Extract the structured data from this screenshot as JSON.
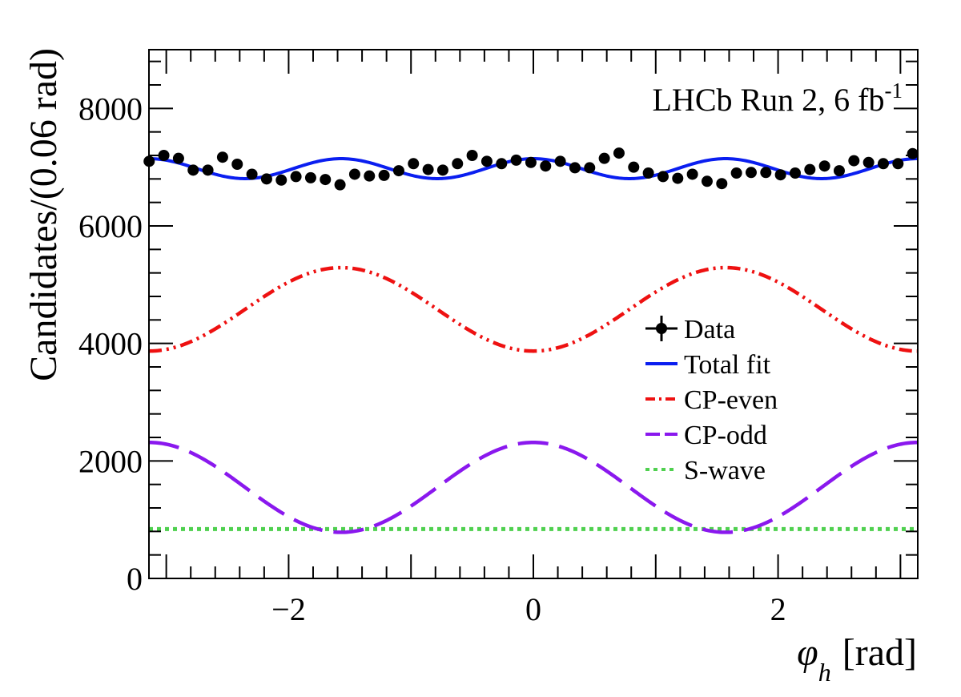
{
  "chart_data": {
    "type": "line",
    "annotation": {
      "text": "LHCb Run 2, 6 fb",
      "superscript": "-1"
    },
    "xlabel": {
      "symbol": "φ",
      "subscript": "h",
      "unit": "[rad]"
    },
    "ylabel": "Candidates/(0.06 rad)",
    "xlim": [
      -3.14159,
      3.14159
    ],
    "ylim": [
      0,
      9000
    ],
    "x_ticks": [
      {
        "value": -2,
        "label": "−2"
      },
      {
        "value": 0,
        "label": "0"
      },
      {
        "value": 2,
        "label": "2"
      }
    ],
    "y_ticks": [
      {
        "value": 0,
        "label": "0"
      },
      {
        "value": 2000,
        "label": "2000"
      },
      {
        "value": 4000,
        "label": "4000"
      },
      {
        "value": 6000,
        "label": "6000"
      },
      {
        "value": 8000,
        "label": "8000"
      }
    ],
    "legend": {
      "position": "center-right",
      "entries": [
        {
          "key": "data",
          "label": "Data",
          "style": "marker",
          "color": "#000000"
        },
        {
          "key": "total",
          "label": "Total fit",
          "style": "solid",
          "color": "#0a1ef0"
        },
        {
          "key": "even",
          "label": "CP-even",
          "style": "dashdot",
          "color": "#ee1111"
        },
        {
          "key": "odd",
          "label": "CP-odd",
          "style": "dashed",
          "color": "#8a18ee"
        },
        {
          "key": "swave",
          "label": "S-wave",
          "style": "dotted",
          "color": "#4fd04f"
        }
      ]
    },
    "curves": {
      "even": {
        "name": "CP-even",
        "mean": 4580,
        "amp": -710,
        "harmonic": 2
      },
      "odd": {
        "name": "CP-odd",
        "mean": 1550,
        "amp": 765,
        "harmonic": 2
      },
      "swave": {
        "name": "S-wave",
        "constant": 840
      },
      "total": {
        "name": "Total fit",
        "mean": 6975,
        "amp": 170,
        "harmonic": 4
      }
    },
    "data_points": {
      "name": "Data",
      "bin_width": 0.06,
      "x": [
        -3.14,
        -3.02,
        -2.9,
        -2.78,
        -2.66,
        -2.54,
        -2.42,
        -2.3,
        -2.18,
        -2.06,
        -1.94,
        -1.82,
        -1.7,
        -1.58,
        -1.46,
        -1.34,
        -1.22,
        -1.1,
        -0.98,
        -0.86,
        -0.74,
        -0.62,
        -0.5,
        -0.38,
        -0.26,
        -0.14,
        -0.02,
        0.1,
        0.22,
        0.34,
        0.46,
        0.58,
        0.7,
        0.82,
        0.94,
        1.06,
        1.18,
        1.3,
        1.42,
        1.54,
        1.66,
        1.78,
        1.9,
        2.02,
        2.14,
        2.26,
        2.38,
        2.5,
        2.62,
        2.74,
        2.86,
        2.98,
        3.1
      ],
      "y": [
        7100,
        7200,
        7150,
        6950,
        6950,
        7170,
        7050,
        6880,
        6800,
        6780,
        6840,
        6820,
        6790,
        6700,
        6880,
        6850,
        6860,
        6940,
        7060,
        6960,
        6950,
        7060,
        7200,
        7100,
        7060,
        7120,
        7080,
        7020,
        7100,
        6990,
        6990,
        7150,
        7240,
        7000,
        6900,
        6840,
        6810,
        6880,
        6760,
        6720,
        6900,
        6910,
        6910,
        6870,
        6900,
        6960,
        7020,
        6940,
        7110,
        7080,
        7060,
        7060,
        7230
      ],
      "y_err": 75
    }
  }
}
